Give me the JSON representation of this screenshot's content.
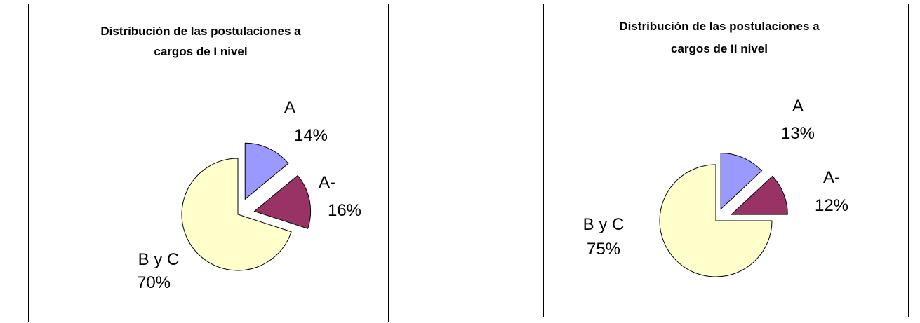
{
  "chart_data": [
    {
      "type": "pie",
      "exploded": true,
      "title_lines": [
        "Distribución de las postulaciones a",
        "cargos de I nivel"
      ],
      "slices": [
        {
          "label": "A",
          "value": 14,
          "percent_label": "14%",
          "color": "#9999FF"
        },
        {
          "label": "A-",
          "value": 16,
          "percent_label": "16%",
          "color": "#993366"
        },
        {
          "label": "B y C",
          "value": 70,
          "percent_label": "70%",
          "color": "#FFFFCC"
        }
      ]
    },
    {
      "type": "pie",
      "exploded": true,
      "title_lines": [
        "Distribución de las postulaciones a",
        "cargos de II nivel"
      ],
      "slices": [
        {
          "label": "A",
          "value": 13,
          "percent_label": "13%",
          "color": "#9999FF"
        },
        {
          "label": "A-",
          "value": 12,
          "percent_label": "12%",
          "color": "#993366"
        },
        {
          "label": "B y C",
          "value": 75,
          "percent_label": "75%",
          "color": "#FFFFCC"
        }
      ]
    }
  ]
}
